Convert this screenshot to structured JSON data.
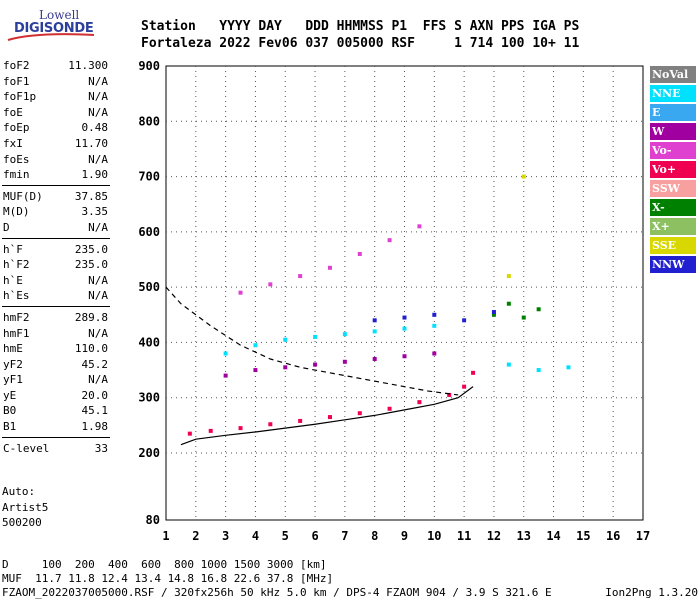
{
  "logo": {
    "top": "Lowell",
    "bottom": "DIGISONDE"
  },
  "header": {
    "line1": "Station   YYYY DAY   DDD HHMMSS P1  FFS S AXN PPS IGA PS",
    "line2": "Fortaleza 2022 Fev06 037 005000 RSF     1 714 100 10+ 11"
  },
  "params": {
    "group1": [
      {
        "name": "foF2",
        "value": "11.300"
      },
      {
        "name": "foF1",
        "value": "N/A"
      },
      {
        "name": "foF1p",
        "value": "N/A"
      },
      {
        "name": "foE",
        "value": "N/A"
      },
      {
        "name": "foEp",
        "value": "0.48"
      },
      {
        "name": "fxI",
        "value": "11.70"
      },
      {
        "name": "foEs",
        "value": "N/A"
      },
      {
        "name": "fmin",
        "value": "1.90"
      }
    ],
    "group2": [
      {
        "name": "MUF(D)",
        "value": "37.85"
      },
      {
        "name": "M(D)",
        "value": "3.35"
      },
      {
        "name": "D",
        "value": "N/A"
      }
    ],
    "group3": [
      {
        "name": "h`F",
        "value": "235.0"
      },
      {
        "name": "h`F2",
        "value": "235.0"
      },
      {
        "name": "h`E",
        "value": "N/A"
      },
      {
        "name": "h`Es",
        "value": "N/A"
      }
    ],
    "group4": [
      {
        "name": "hmF2",
        "value": "289.8"
      },
      {
        "name": "hmF1",
        "value": "N/A"
      },
      {
        "name": "hmE",
        "value": "110.0"
      },
      {
        "name": "yF2",
        "value": "45.2"
      },
      {
        "name": "yF1",
        "value": "N/A"
      },
      {
        "name": "yE",
        "value": "20.0"
      },
      {
        "name": "B0",
        "value": "45.1"
      },
      {
        "name": "B1",
        "value": "1.98"
      }
    ],
    "group5": [
      {
        "name": "C-level",
        "value": "33"
      }
    ]
  },
  "auto": {
    "line1": "Auto:",
    "line2": "Artist5",
    "line3": "500200"
  },
  "footer": {
    "line1": "D     100  200  400  600  800 1000 1500 3000 [km]",
    "line2": "MUF  11.7 11.8 12.4 13.4 14.8 16.8 22.6 37.8 [MHz]",
    "line3": "FZAOM_2022037005000.RSF / 320fx256h 50 kHz 5.0 km / DPS-4 FZAOM 904 / 3.9 S 321.6 E",
    "version": "Ion2Png 1.3.20"
  },
  "legend": [
    {
      "label": "NoVal",
      "color": "#808080"
    },
    {
      "label": "NNE",
      "color": "#00e0ff"
    },
    {
      "label": "E",
      "color": "#39a8f0"
    },
    {
      "label": "W",
      "color": "#a000a0"
    },
    {
      "label": "Vo-",
      "color": "#e040d0"
    },
    {
      "label": "Vo+",
      "color": "#f00050"
    },
    {
      "label": "SSW",
      "color": "#f8a0a0"
    },
    {
      "label": "X-",
      "color": "#008000"
    },
    {
      "label": "X+",
      "color": "#8cc060"
    },
    {
      "label": "SSE",
      "color": "#d8d800"
    },
    {
      "label": "NNW",
      "color": "#2020d0"
    }
  ],
  "chart_data": {
    "type": "scatter",
    "title": "",
    "xlabel": "",
    "ylabel": "",
    "xlim": [
      1,
      17
    ],
    "ylim": [
      80,
      900
    ],
    "x_ticks": [
      1,
      2,
      3,
      4,
      5,
      6,
      7,
      8,
      9,
      10,
      11,
      12,
      13,
      14,
      15,
      16,
      17
    ],
    "y_ticks": [
      80,
      200,
      300,
      400,
      500,
      600,
      700,
      800,
      900
    ],
    "grid": true,
    "series": [
      {
        "name": "Vo+",
        "color": "#f00050",
        "x": [
          1.8,
          2.5,
          3.5,
          4.5,
          5.5,
          6.5,
          7.5,
          8.5,
          9.5,
          10.5,
          11.0,
          11.3
        ],
        "y": [
          235,
          240,
          245,
          252,
          258,
          265,
          272,
          280,
          292,
          305,
          320,
          345
        ]
      },
      {
        "name": "X-",
        "color": "#008000",
        "x": [
          12.0,
          12.5,
          13.0,
          13.5
        ],
        "y": [
          450,
          470,
          445,
          460
        ]
      },
      {
        "name": "NNE",
        "color": "#00e0ff",
        "x": [
          3.0,
          4.0,
          5.0,
          6.0,
          7.0,
          8.0,
          9.0,
          10.0,
          12.5,
          13.5,
          14.5
        ],
        "y": [
          380,
          395,
          405,
          410,
          415,
          420,
          425,
          430,
          360,
          350,
          355
        ]
      },
      {
        "name": "NNW",
        "color": "#2020d0",
        "x": [
          8.0,
          9.0,
          10.0,
          11.0,
          12.0
        ],
        "y": [
          440,
          445,
          450,
          440,
          455
        ]
      },
      {
        "name": "W",
        "color": "#a000a0",
        "x": [
          3.0,
          4.0,
          5.0,
          6.0,
          7.0,
          8.0,
          9.0,
          10.0
        ],
        "y": [
          340,
          350,
          355,
          360,
          365,
          370,
          375,
          380
        ]
      },
      {
        "name": "Vo-",
        "color": "#e040d0",
        "x": [
          3.5,
          4.5,
          5.5,
          6.5,
          7.5,
          8.5,
          9.5
        ],
        "y": [
          490,
          505,
          520,
          535,
          560,
          585,
          610
        ]
      },
      {
        "name": "SSE",
        "color": "#d8d800",
        "x": [
          12.5,
          13.0
        ],
        "y": [
          520,
          700
        ]
      }
    ]
  }
}
